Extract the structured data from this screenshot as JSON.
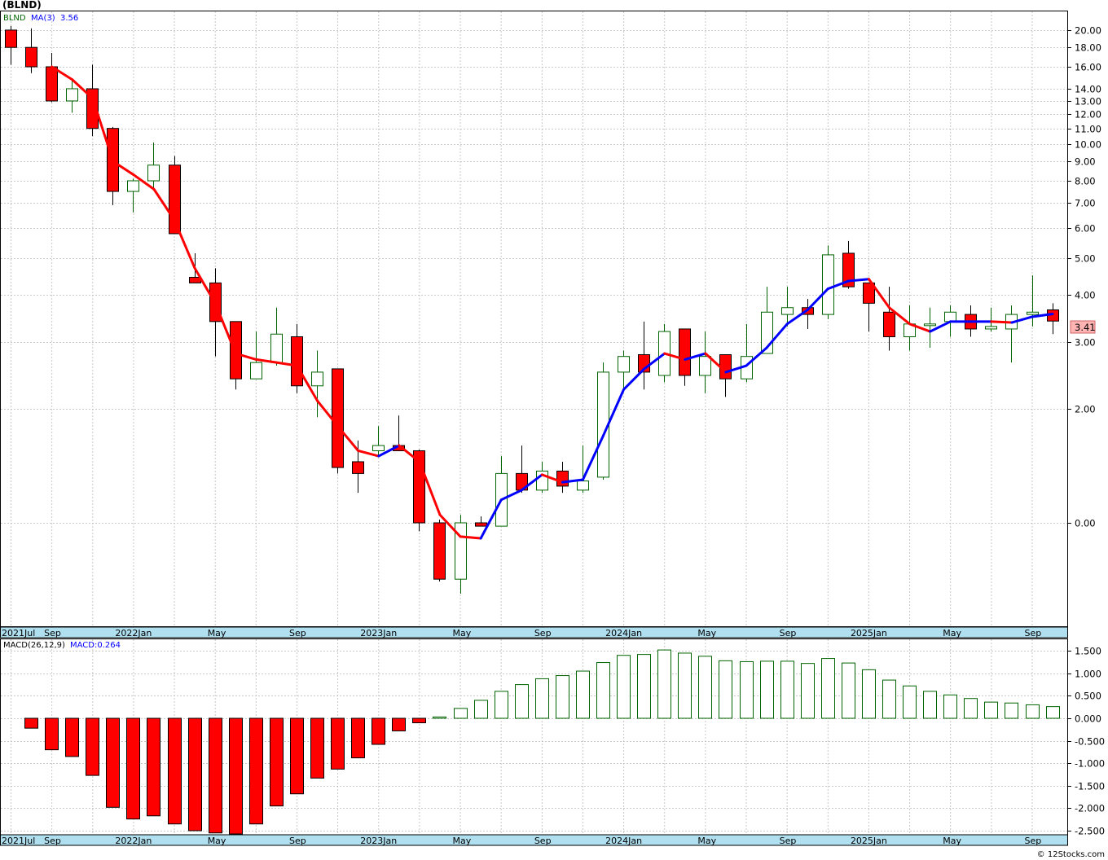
{
  "title": "(BLND)",
  "footer": "© 12Stocks.com",
  "legend_price": {
    "symbol": "BLND",
    "ma_label": "MA(3)",
    "ma_value": "3.56"
  },
  "legend_macd": {
    "label": "MACD(26,12,9)",
    "value_label": "MACD:0.264"
  },
  "last_price_label": "3.41",
  "colors": {
    "up_candle": "#006400",
    "down_candle": "#ff0000",
    "ma_rising": "#0000ff",
    "ma_falling": "#ff0000",
    "axis_band": "#b0dfef",
    "grid": "#c8c8c8",
    "last_price_box": "#ffb3b3"
  },
  "chart_data": [
    {
      "type": "candlestick",
      "interval": "monthly",
      "scale": "log",
      "y_ticks": [
        20.0,
        18.0,
        16.0,
        14.0,
        13.0,
        12.0,
        11.0,
        10.0,
        9.0,
        8.0,
        7.0,
        6.0,
        5.0,
        4.0,
        3.0,
        2.0,
        0.0
      ],
      "y_tick_labels": [
        "20.00",
        "18.00",
        "16.00",
        "14.00",
        "13.00",
        "12.00",
        "11.00",
        "10.00",
        "9.00",
        "8.00",
        "7.00",
        "6.00",
        "5.00",
        "4.00",
        "3.00",
        "2.00",
        "0.00"
      ],
      "x_labels": [
        "2021Jul",
        "Sep",
        "2022Jan",
        "May",
        "Sep",
        "2023Jan",
        "May",
        "Sep",
        "2024Jan",
        "May",
        "Sep",
        "2025Jan",
        "May",
        "Sep"
      ],
      "candles": [
        {
          "month": "2021-07",
          "open": 20.0,
          "high": 20.5,
          "low": 16.2,
          "close": 18.0
        },
        {
          "month": "2021-08",
          "open": 18.0,
          "high": 20.2,
          "low": 15.4,
          "close": 16.0
        },
        {
          "month": "2021-09",
          "open": 16.0,
          "high": 17.4,
          "low": 12.9,
          "close": 13.0
        },
        {
          "month": "2021-10",
          "open": 13.0,
          "high": 14.8,
          "low": 12.1,
          "close": 14.0
        },
        {
          "month": "2021-11",
          "open": 14.0,
          "high": 16.2,
          "low": 10.5,
          "close": 11.0
        },
        {
          "month": "2021-12",
          "open": 11.0,
          "high": 11.1,
          "low": 6.9,
          "close": 7.5
        },
        {
          "month": "2022-01",
          "open": 7.5,
          "high": 8.1,
          "low": 6.6,
          "close": 8.0
        },
        {
          "month": "2022-02",
          "open": 8.0,
          "high": 10.1,
          "low": 7.6,
          "close": 8.8
        },
        {
          "month": "2022-03",
          "open": 8.8,
          "high": 9.3,
          "low": 5.8,
          "close": 5.8
        },
        {
          "month": "2022-04",
          "open": 4.45,
          "high": 5.15,
          "low": 4.3,
          "close": 4.3
        },
        {
          "month": "2022-05",
          "open": 4.3,
          "high": 4.7,
          "low": 2.75,
          "close": 3.4
        },
        {
          "month": "2022-06",
          "open": 3.4,
          "high": 3.4,
          "low": 2.25,
          "close": 2.4
        },
        {
          "month": "2022-07",
          "open": 2.4,
          "high": 3.2,
          "low": 2.4,
          "close": 2.65
        },
        {
          "month": "2022-08",
          "open": 2.65,
          "high": 3.7,
          "low": 2.6,
          "close": 3.15
        },
        {
          "month": "2022-09",
          "open": 3.1,
          "high": 3.35,
          "low": 2.2,
          "close": 2.3
        },
        {
          "month": "2022-10",
          "open": 2.3,
          "high": 2.85,
          "low": 1.9,
          "close": 2.5
        },
        {
          "month": "2022-11",
          "open": 2.55,
          "high": 2.55,
          "low": 1.35,
          "close": 1.4
        },
        {
          "month": "2022-12",
          "open": 1.45,
          "high": 1.65,
          "low": 1.2,
          "close": 1.35
        },
        {
          "month": "2023-01",
          "open": 1.55,
          "high": 1.8,
          "low": 1.5,
          "close": 1.6
        },
        {
          "month": "2023-02",
          "open": 1.6,
          "high": 1.92,
          "low": 1.55,
          "close": 1.55
        },
        {
          "month": "2023-03",
          "open": 1.55,
          "high": 1.56,
          "low": 0.95,
          "close": 1.0
        },
        {
          "month": "2023-04",
          "open": 1.0,
          "high": 1.02,
          "low": 0.7,
          "close": 0.71
        },
        {
          "month": "2023-05",
          "open": 0.71,
          "high": 1.05,
          "low": 0.65,
          "close": 1.0
        },
        {
          "month": "2023-06",
          "open": 1.0,
          "high": 1.04,
          "low": 0.98,
          "close": 0.98
        },
        {
          "month": "2023-07",
          "open": 0.98,
          "high": 1.5,
          "low": 0.98,
          "close": 1.35
        },
        {
          "month": "2023-08",
          "open": 1.35,
          "high": 1.6,
          "low": 1.2,
          "close": 1.22
        },
        {
          "month": "2023-09",
          "open": 1.22,
          "high": 1.45,
          "low": 1.2,
          "close": 1.37
        },
        {
          "month": "2023-10",
          "open": 1.37,
          "high": 1.45,
          "low": 1.2,
          "close": 1.25
        },
        {
          "month": "2023-11",
          "open": 1.22,
          "high": 1.6,
          "low": 1.2,
          "close": 1.29
        },
        {
          "month": "2023-12",
          "open": 1.32,
          "high": 2.65,
          "low": 1.3,
          "close": 2.5
        },
        {
          "month": "2024-01",
          "open": 2.5,
          "high": 2.85,
          "low": 2.25,
          "close": 2.75
        },
        {
          "month": "2024-02",
          "open": 2.78,
          "high": 3.4,
          "low": 2.25,
          "close": 2.5
        },
        {
          "month": "2024-03",
          "open": 2.45,
          "high": 3.35,
          "low": 2.35,
          "close": 3.2
        },
        {
          "month": "2024-04",
          "open": 3.25,
          "high": 3.25,
          "low": 2.3,
          "close": 2.45
        },
        {
          "month": "2024-05",
          "open": 2.45,
          "high": 3.2,
          "low": 2.2,
          "close": 2.75
        },
        {
          "month": "2024-06",
          "open": 2.78,
          "high": 2.78,
          "low": 2.15,
          "close": 2.4
        },
        {
          "month": "2024-07",
          "open": 2.4,
          "high": 3.35,
          "low": 2.35,
          "close": 2.75
        },
        {
          "month": "2024-08",
          "open": 2.8,
          "high": 4.2,
          "low": 2.8,
          "close": 3.6
        },
        {
          "month": "2024-09",
          "open": 3.55,
          "high": 4.2,
          "low": 3.3,
          "close": 3.7
        },
        {
          "month": "2024-10",
          "open": 3.7,
          "high": 3.9,
          "low": 3.25,
          "close": 3.55
        },
        {
          "month": "2024-11",
          "open": 3.55,
          "high": 5.4,
          "low": 3.45,
          "close": 5.1
        },
        {
          "month": "2024-12",
          "open": 5.15,
          "high": 5.55,
          "low": 4.15,
          "close": 4.2
        },
        {
          "month": "2025-01",
          "open": 4.3,
          "high": 4.3,
          "low": 3.2,
          "close": 3.8
        },
        {
          "month": "2025-02",
          "open": 3.6,
          "high": 4.2,
          "low": 2.85,
          "close": 3.1
        },
        {
          "month": "2025-03",
          "open": 3.1,
          "high": 3.75,
          "low": 2.85,
          "close": 3.35
        },
        {
          "month": "2025-04",
          "open": 3.35,
          "high": 3.7,
          "low": 2.9,
          "close": 3.35
        },
        {
          "month": "2025-05",
          "open": 3.4,
          "high": 3.75,
          "low": 3.1,
          "close": 3.6
        },
        {
          "month": "2025-06",
          "open": 3.55,
          "high": 3.75,
          "low": 3.1,
          "close": 3.25
        },
        {
          "month": "2025-07",
          "open": 3.25,
          "high": 3.7,
          "low": 3.2,
          "close": 3.3
        },
        {
          "month": "2025-08",
          "open": 3.25,
          "high": 3.75,
          "low": 2.65,
          "close": 3.55
        },
        {
          "month": "2025-09",
          "open": 3.55,
          "high": 4.5,
          "low": 3.3,
          "close": 3.6
        },
        {
          "month": "2025-10",
          "open": 3.65,
          "high": 3.8,
          "low": 3.15,
          "close": 3.41
        }
      ],
      "ma3": [
        null,
        null,
        16.0,
        14.8,
        13.2,
        9.0,
        8.3,
        7.6,
        6.3,
        4.7,
        3.8,
        2.8,
        2.7,
        2.65,
        2.6,
        2.1,
        1.8,
        1.55,
        1.5,
        1.6,
        1.45,
        1.05,
        0.92,
        0.91,
        1.15,
        1.22,
        1.34,
        1.28,
        1.3,
        1.7,
        2.25,
        2.55,
        2.8,
        2.7,
        2.8,
        2.5,
        2.6,
        2.9,
        3.35,
        3.65,
        4.15,
        4.35,
        4.4,
        3.7,
        3.35,
        3.2,
        3.4,
        3.4,
        3.4,
        3.38,
        3.5,
        3.56
      ]
    },
    {
      "type": "bar",
      "name": "MACD histogram",
      "y_ticks": [
        1.5,
        1.0,
        0.5,
        0.0,
        -0.5,
        -1.0,
        -1.5,
        -2.0,
        -2.5
      ],
      "y_tick_labels": [
        "1.500",
        "1.000",
        "0.500",
        "0.000",
        "-0.500",
        "-1.000",
        "-1.500",
        "-2.000",
        "-2.500"
      ],
      "values": [
        null,
        -0.22,
        -0.7,
        -0.85,
        -1.27,
        -1.98,
        -2.24,
        -2.17,
        -2.35,
        -2.5,
        -2.55,
        -2.6,
        -2.35,
        -1.95,
        -1.68,
        -1.33,
        -1.13,
        -0.88,
        -0.58,
        -0.28,
        -0.1,
        0.03,
        0.22,
        0.4,
        0.6,
        0.75,
        0.88,
        0.95,
        1.05,
        1.24,
        1.4,
        1.42,
        1.52,
        1.45,
        1.38,
        1.28,
        1.26,
        1.27,
        1.27,
        1.22,
        1.33,
        1.23,
        1.08,
        0.85,
        0.72,
        0.6,
        0.52,
        0.44,
        0.36,
        0.34,
        0.3,
        0.26
      ]
    }
  ]
}
